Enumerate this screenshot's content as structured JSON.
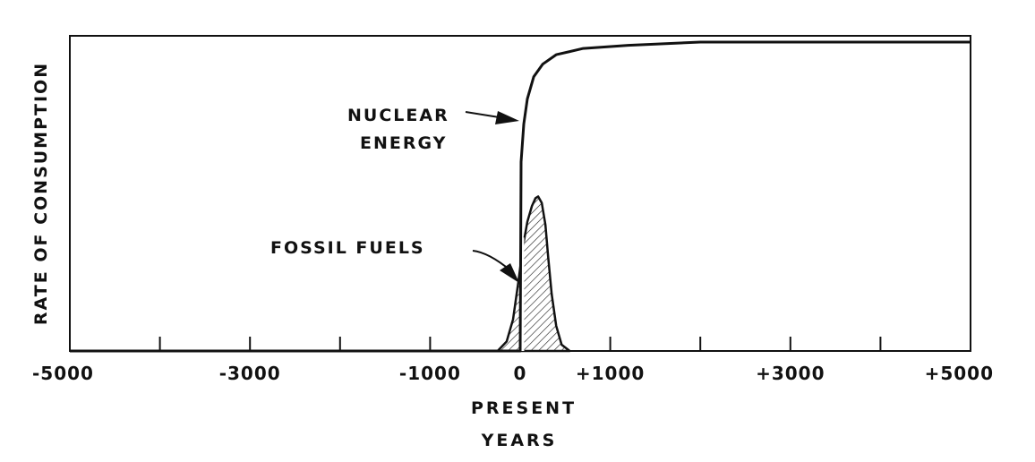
{
  "chart_data": {
    "type": "line",
    "title": "",
    "xlabel": "YEARS",
    "xlabel_extra": "PRESENT",
    "ylabel": "RATE OF CONSUMPTION",
    "xlim": [
      -5000,
      5000
    ],
    "ylim": [
      0,
      100
    ],
    "grid": false,
    "x_tick_values": [
      -5000,
      -4000,
      -3000,
      -2000,
      -1000,
      0,
      1000,
      2000,
      3000,
      4000,
      5000
    ],
    "x_tick_labels": [
      {
        "value": -5000,
        "label": "-5000"
      },
      {
        "value": -3000,
        "label": "-3000"
      },
      {
        "value": -1000,
        "label": "-1000"
      },
      {
        "value": 0,
        "label": "0"
      },
      {
        "value": 1000,
        "label": "+1000"
      },
      {
        "value": 3000,
        "label": "+3000"
      },
      {
        "value": 5000,
        "label": "+5000"
      }
    ],
    "present_x": 0,
    "series": [
      {
        "name": "NUCLEAR ENERGY",
        "label_lines": [
          "NUCLEAR",
          "ENERGY"
        ],
        "points": [
          [
            -5000,
            0
          ],
          [
            0,
            0
          ],
          [
            10,
            60
          ],
          [
            40,
            72
          ],
          [
            80,
            80
          ],
          [
            150,
            87
          ],
          [
            250,
            91
          ],
          [
            400,
            94
          ],
          [
            700,
            96
          ],
          [
            1200,
            97
          ],
          [
            2000,
            98
          ],
          [
            5000,
            98
          ]
        ]
      },
      {
        "name": "FOSSIL FUELS",
        "label_lines": [
          "FOSSIL FUELS"
        ],
        "peak_x": 200,
        "peak_y": 49,
        "points": [
          [
            -250,
            0
          ],
          [
            -150,
            3
          ],
          [
            -80,
            10
          ],
          [
            -20,
            22
          ],
          [
            30,
            33
          ],
          [
            80,
            41
          ],
          [
            130,
            46
          ],
          [
            170,
            48.5
          ],
          [
            200,
            49
          ],
          [
            240,
            47
          ],
          [
            280,
            40
          ],
          [
            310,
            30
          ],
          [
            350,
            18
          ],
          [
            400,
            8
          ],
          [
            460,
            2
          ],
          [
            550,
            0
          ]
        ]
      }
    ]
  }
}
